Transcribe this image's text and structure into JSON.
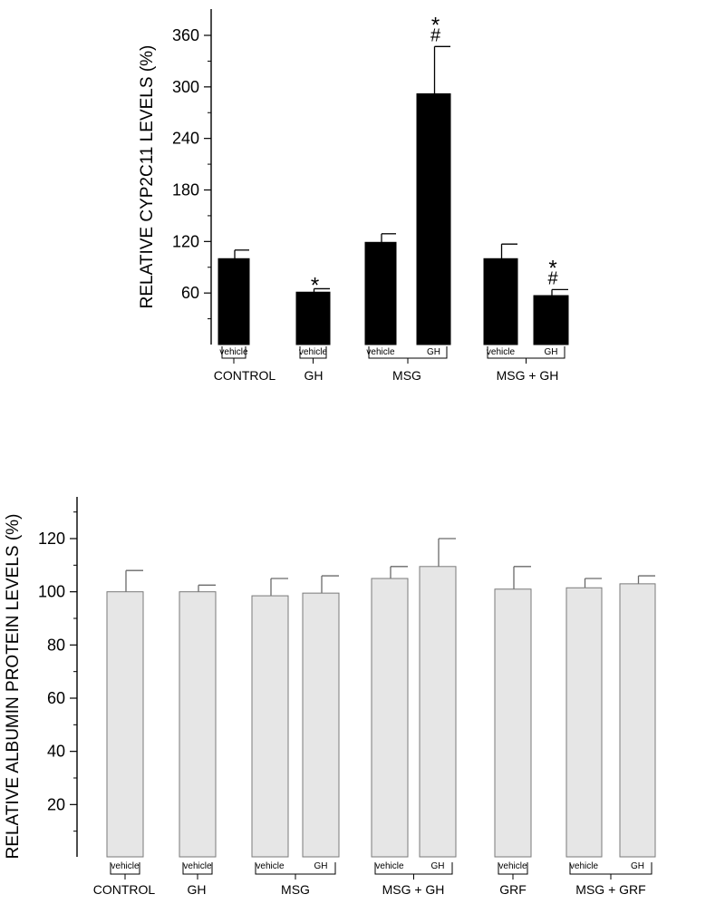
{
  "chart_data": [
    {
      "type": "bar",
      "ylabel": "RELATIVE CYP2C11 LEVELS (%)",
      "ylim": [
        0,
        390
      ],
      "yticks": [
        60,
        120,
        180,
        240,
        300,
        360
      ],
      "bar_color": "#000000",
      "groups": [
        {
          "label": "CONTROL",
          "bars": [
            {
              "sublabel": "vehicle",
              "value": 100,
              "error": 10,
              "marks": []
            }
          ]
        },
        {
          "label": "GH",
          "bars": [
            {
              "sublabel": "vehicle",
              "value": 61,
              "error": 4,
              "marks": [
                "*"
              ]
            }
          ]
        },
        {
          "label": "MSG",
          "bars": [
            {
              "sublabel": "vehicle",
              "value": 119,
              "error": 10,
              "marks": []
            },
            {
              "sublabel": "GH",
              "value": 292,
              "error": 55,
              "marks": [
                "#",
                "*"
              ]
            }
          ]
        },
        {
          "label": "MSG + GH",
          "bars": [
            {
              "sublabel": "vehicle",
              "value": 100,
              "error": 17,
              "marks": []
            },
            {
              "sublabel": "GH",
              "value": 57,
              "error": 7,
              "marks": [
                "#",
                "*"
              ]
            }
          ]
        }
      ]
    },
    {
      "type": "bar",
      "ylabel": "RELATIVE ALBUMIN PROTEIN LEVELS (%)",
      "ylim": [
        0,
        135
      ],
      "yticks": [
        20,
        40,
        60,
        80,
        100,
        120
      ],
      "bar_color": "#e6e6e6",
      "groups": [
        {
          "label": "CONTROL",
          "bars": [
            {
              "sublabel": "vehicle",
              "value": 100,
              "error": 8,
              "marks": []
            }
          ]
        },
        {
          "label": "GH",
          "bars": [
            {
              "sublabel": "vehicle",
              "value": 100,
              "error": 2.5,
              "marks": []
            }
          ]
        },
        {
          "label": "MSG",
          "bars": [
            {
              "sublabel": "vehicle",
              "value": 98.5,
              "error": 6.5,
              "marks": []
            },
            {
              "sublabel": "GH",
              "value": 99.5,
              "error": 6.5,
              "marks": []
            }
          ]
        },
        {
          "label": "MSG + GH",
          "bars": [
            {
              "sublabel": "vehicle",
              "value": 105,
              "error": 4.5,
              "marks": []
            },
            {
              "sublabel": "GH",
              "value": 109.5,
              "error": 10.5,
              "marks": []
            }
          ]
        },
        {
          "label": "GRF",
          "bars": [
            {
              "sublabel": "vehicle",
              "value": 101,
              "error": 8.5,
              "marks": []
            }
          ]
        },
        {
          "label": "MSG + GRF",
          "bars": [
            {
              "sublabel": "vehicle",
              "value": 101.5,
              "error": 3.5,
              "marks": []
            },
            {
              "sublabel": "GH",
              "value": 103,
              "error": 3,
              "marks": []
            }
          ]
        }
      ]
    }
  ]
}
